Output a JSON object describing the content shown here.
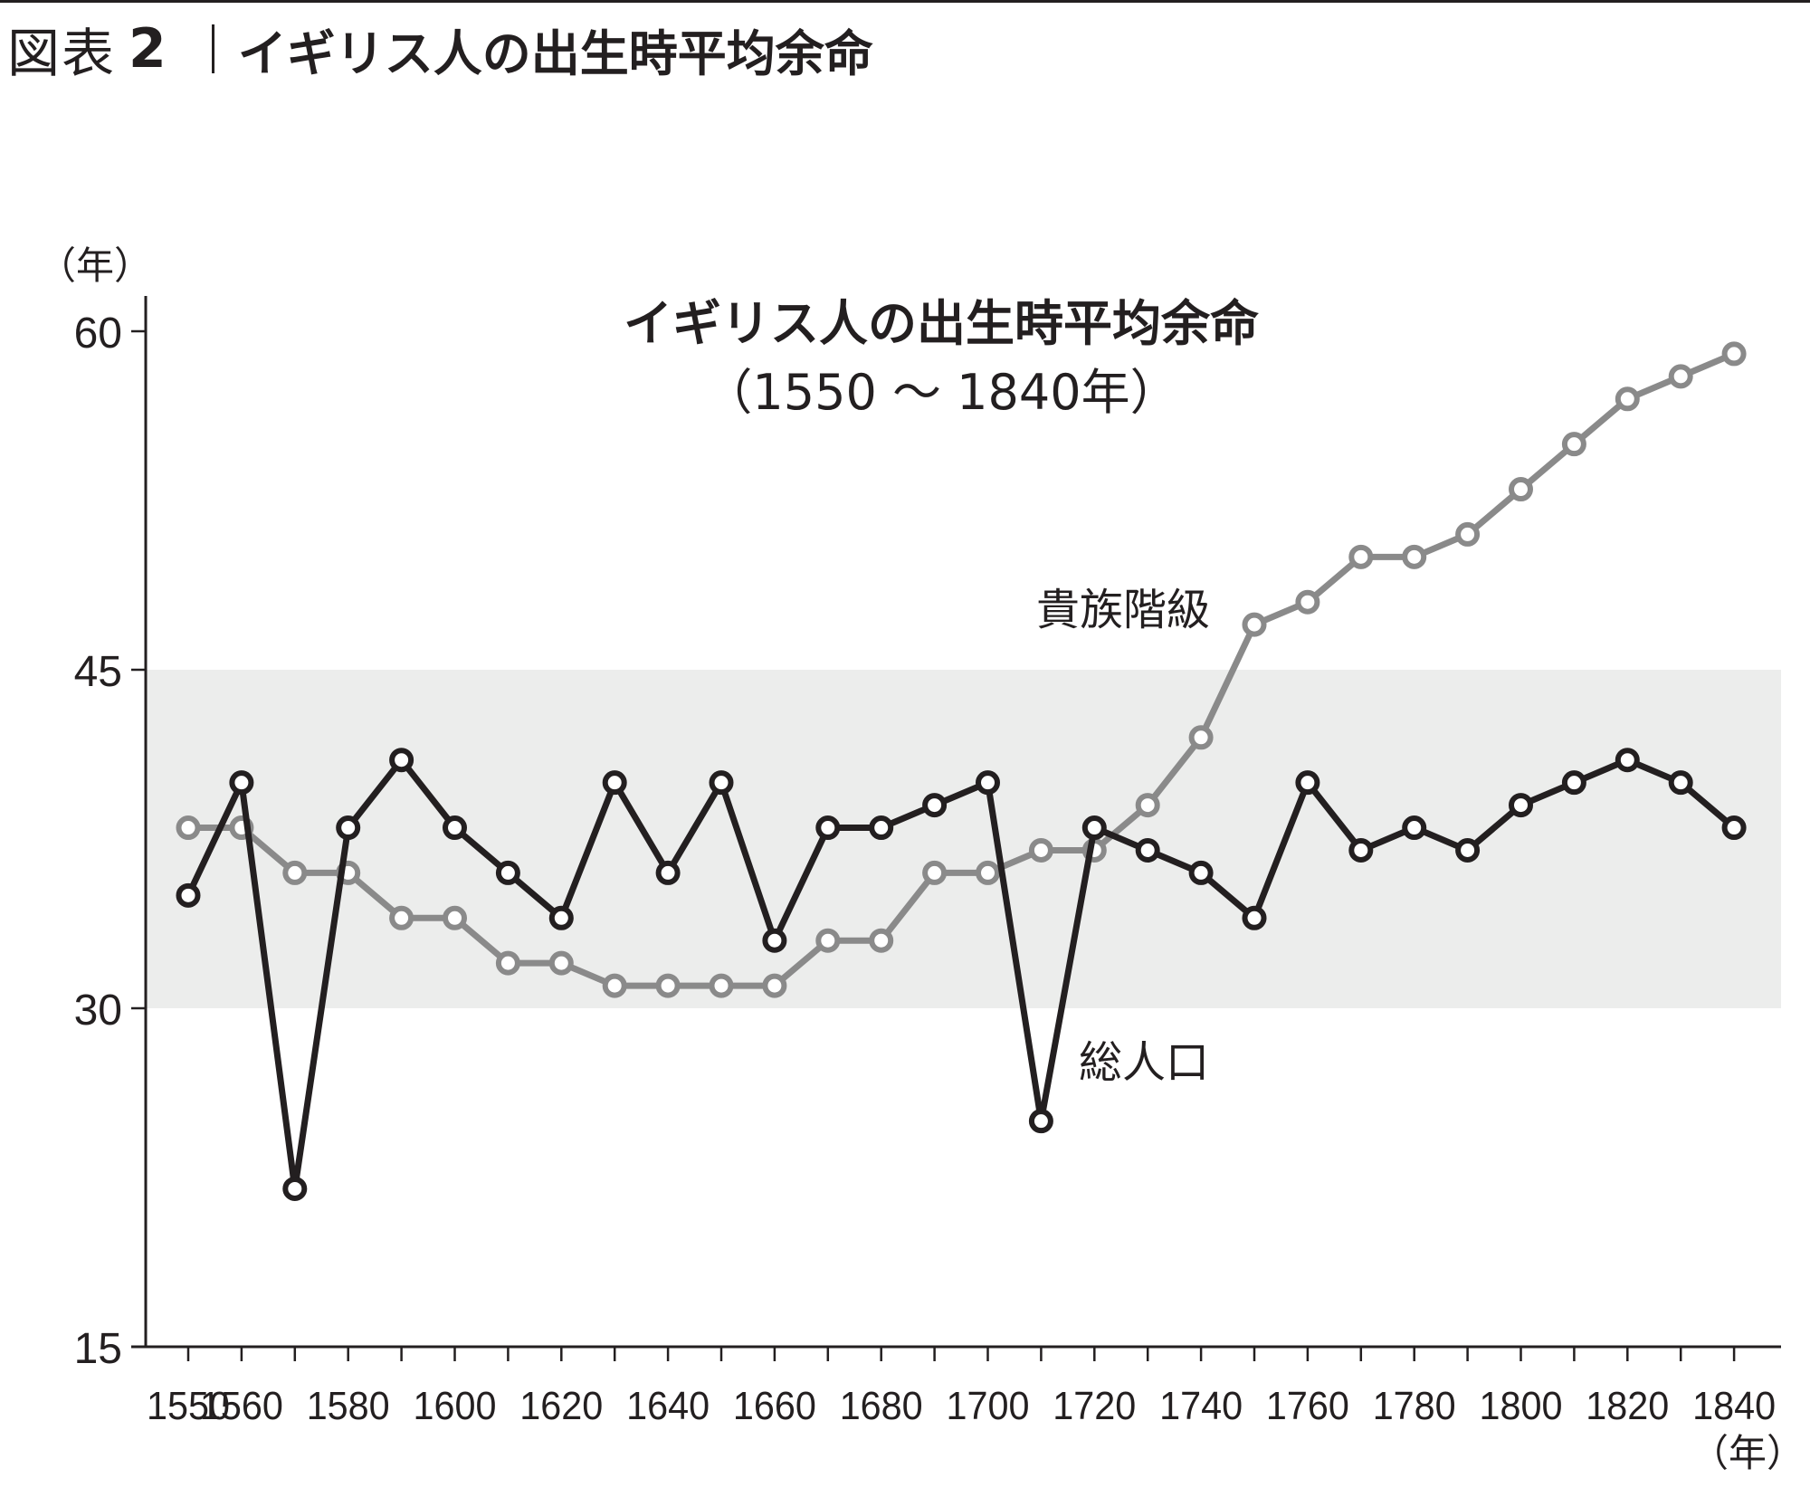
{
  "figure": {
    "prefix": "図表",
    "number": "2",
    "title": "イギリス人の出生時平均余命"
  },
  "chart_data": {
    "type": "line",
    "title": "イギリス人の出生時平均余命",
    "subtitle": "（1550 ～ 1840年）",
    "ylabel": "（年）",
    "xlabel": "（年）",
    "ylim": [
      15,
      60
    ],
    "xlim": [
      1550,
      1840
    ],
    "yticks": [
      15,
      30,
      45,
      60
    ],
    "xticks": [
      1550,
      1560,
      1580,
      1600,
      1620,
      1640,
      1660,
      1680,
      1700,
      1720,
      1740,
      1760,
      1780,
      1800,
      1820,
      1840
    ],
    "shaded_band": [
      30,
      45
    ],
    "x": [
      1550,
      1560,
      1570,
      1580,
      1590,
      1600,
      1610,
      1620,
      1630,
      1640,
      1650,
      1660,
      1670,
      1680,
      1690,
      1700,
      1710,
      1720,
      1730,
      1740,
      1750,
      1760,
      1770,
      1780,
      1790,
      1800,
      1810,
      1820,
      1830,
      1840
    ],
    "series": [
      {
        "name": "貴族階級",
        "color": "#8a8a8a",
        "values": [
          38,
          38,
          36,
          36,
          34,
          34,
          32,
          32,
          31,
          31,
          31,
          31,
          33,
          33,
          36,
          36,
          37,
          37,
          39,
          42,
          47,
          48,
          50,
          50,
          51,
          53,
          55,
          57,
          58,
          59
        ]
      },
      {
        "name": "総人口",
        "color": "#231f20",
        "values": [
          35,
          40,
          22,
          38,
          41,
          38,
          36,
          34,
          40,
          36,
          40,
          33,
          38,
          38,
          39,
          40,
          25,
          38,
          37,
          36,
          34,
          40,
          37,
          38,
          37,
          39,
          40,
          41,
          40,
          38
        ]
      }
    ]
  }
}
